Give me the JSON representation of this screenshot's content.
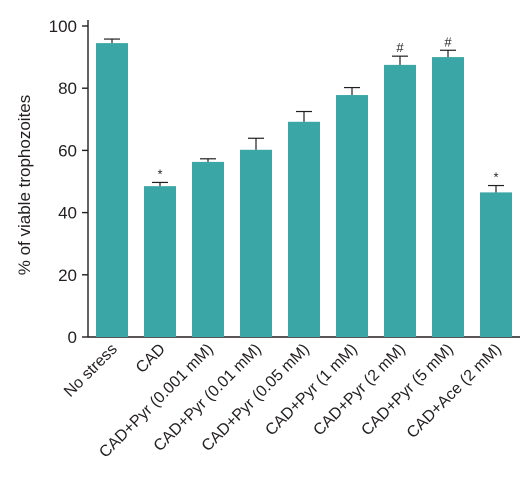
{
  "chart_data": {
    "type": "bar",
    "ylabel": "% of viable trophozoites",
    "xlabel": "",
    "ylim": [
      0,
      100
    ],
    "yticks": [
      0,
      20,
      40,
      60,
      80,
      100
    ],
    "grid": false,
    "legend": "none",
    "bar_color": "#3aa6a6",
    "categories": [
      "No stress",
      "CAD",
      "CAD+Pyr (0.001 mM)",
      "CAD+Pyr (0.01 mM)",
      "CAD+Pyr (0.05 mM)",
      "CAD+Pyr (1 mM)",
      "CAD+Pyr (2 mM)",
      "CAD+Pyr (5 mM)",
      "CAD+Ace (2 mM)"
    ],
    "values": [
      94.5,
      48.5,
      56.3,
      60.2,
      69.2,
      77.8,
      87.5,
      90.0,
      46.5
    ],
    "errors": [
      1.3,
      1.2,
      1.0,
      3.7,
      3.3,
      2.4,
      2.8,
      2.2,
      2.2
    ],
    "annotations": [
      "",
      "*",
      "",
      "",
      "",
      "",
      "#",
      "#",
      "*"
    ]
  }
}
